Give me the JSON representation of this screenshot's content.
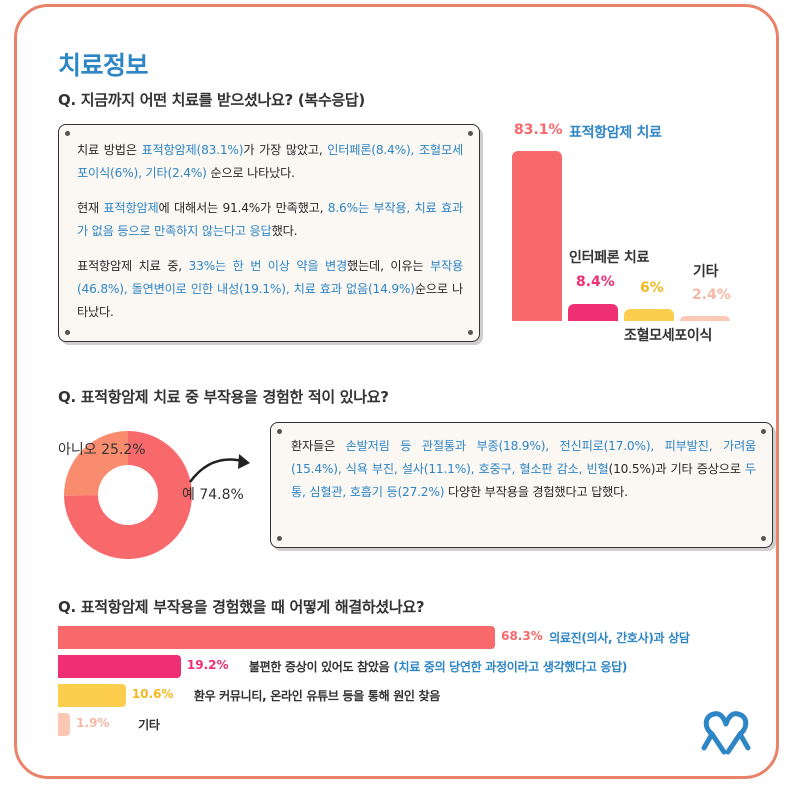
{
  "title": "치료정보",
  "q1": {
    "question": "Q. 지금까지 어떤 치료를 받으셨나요? (복수응답)",
    "card": {
      "p1_a": "치료 방법은 ",
      "p1_b": "표적항암제(83.1%)",
      "p1_c": "가 가장 많았고, ",
      "p1_d": "인터페론(8.4%), 조혈모세포이식(6%), 기타(2.4%)",
      "p1_e": " 순으로 나타났다.",
      "p2_a": "현재 ",
      "p2_b": "표적항암제",
      "p2_c": "에 대해서는 91.4%가 만족했고, ",
      "p2_d": "8.6%는 부작용, 치료 효과가 없음 등으로 만족하지 않는다고 응답",
      "p2_e": "했다.",
      "p3_a": "표적항암제 치료 중, ",
      "p3_b": "33%는 한 번 이상 약을 변경",
      "p3_c": "했는데, 이유는 ",
      "p3_d": "부작용(46.8%), 돌연변이로 인한 내성(19.1%), 치료 효과 없음(14.9%)",
      "p3_e": "순으로 나타났다."
    }
  },
  "q2": {
    "question": "Q. 표적항암제 치료 중 부작용을 경험한 적이 있나요?",
    "card": {
      "a": "환자들은 ",
      "b": "손발저림 등 관절통과 부종(18.9%), 전신피로(17.0%), 피부발진, 가려움(15.4%), 식욕 부진, 설사(11.1%), 호중구, 혈소판 감소, 빈혈",
      "c": "(10.5%)과 기타 증상으로 ",
      "d": "두통, 심혈관, 호흡기 등(27.2%)",
      "e": " 다양한 부작용을 경험했다고 답했다."
    }
  },
  "q3": {
    "question": "Q. 표적항암제 부작용을 경험했을 때 어떻게 해결하셨나요?",
    "note": "(치료 중의 당연한 과정이라고 생각했다고 응답)"
  },
  "colors": {
    "coral": "#f8696b",
    "pink": "#ee2f74",
    "yellow": "#fdcd4d",
    "peach": "#fbc8b6",
    "blue": "#2f86c5",
    "frame": "#e8836a"
  },
  "chart_data": [
    {
      "type": "bar",
      "categories": [
        "표적항암제 치료",
        "인터페론 치료",
        "조혈모세포이식",
        "기타"
      ],
      "values": [
        83.1,
        8.4,
        6,
        2.4
      ],
      "value_labels": [
        "83.1%",
        "8.4%",
        "6%",
        "2.4%"
      ],
      "ylim": [
        0,
        100
      ]
    },
    {
      "type": "pie",
      "donut": true,
      "categories": [
        "예",
        "아니오"
      ],
      "values": [
        74.8,
        25.2
      ],
      "labels": [
        "예 74.8%",
        "아니오 25.2%"
      ]
    },
    {
      "type": "bar",
      "orientation": "horizontal",
      "categories": [
        "의료진(의사, 간호사)과 상담",
        "불편한 증상이 있어도 참았음",
        "환우 커뮤니티, 온라인 유튜브 등을 통해 원인 찾음",
        "기타"
      ],
      "values": [
        68.3,
        19.2,
        10.6,
        1.9
      ],
      "value_labels": [
        "68.3%",
        "19.2%",
        "10.6%",
        "1.9%"
      ],
      "xlim": [
        0,
        100
      ]
    }
  ]
}
